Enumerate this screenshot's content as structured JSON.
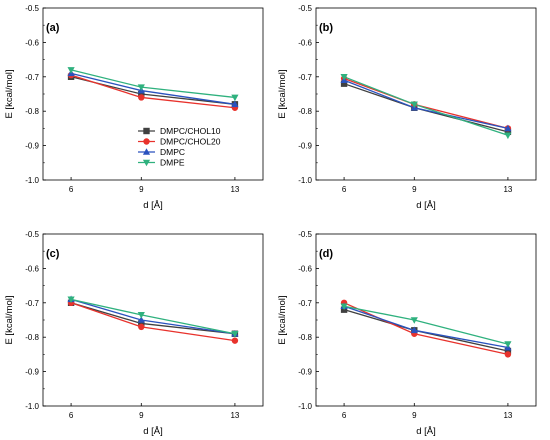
{
  "chart_data": [
    {
      "type": "line",
      "panel_label": "(a)",
      "x": [
        6,
        9,
        13
      ],
      "xlabel": "d [Å]",
      "ylabel": "E [kcal/mol]",
      "xticks": [
        "6",
        "9",
        "13"
      ],
      "yticks": [
        "-1.0",
        "-0.9",
        "-0.8",
        "-0.7",
        "-0.6",
        "-0.5"
      ],
      "ylim": [
        -1.0,
        -0.5
      ],
      "legend": "center-left",
      "series": [
        {
          "name": "DMPC/CHOL10",
          "values": [
            -0.7,
            -0.75,
            -0.78
          ]
        },
        {
          "name": "DMPC/CHOL20",
          "values": [
            -0.695,
            -0.76,
            -0.79
          ]
        },
        {
          "name": "DMPC",
          "values": [
            -0.69,
            -0.74,
            -0.78
          ]
        },
        {
          "name": "DMPE",
          "values": [
            -0.68,
            -0.73,
            -0.76
          ]
        }
      ]
    },
    {
      "type": "line",
      "panel_label": "(b)",
      "x": [
        6,
        9,
        13
      ],
      "xlabel": "d [Å]",
      "ylabel": "E [kcal/mol]",
      "xticks": [
        "6",
        "9",
        "13"
      ],
      "yticks": [
        "-1.0",
        "-0.9",
        "-0.8",
        "-0.7",
        "-0.6",
        "-0.5"
      ],
      "ylim": [
        -1.0,
        -0.5
      ],
      "series": [
        {
          "name": "DMPC/CHOL10",
          "values": [
            -0.72,
            -0.79,
            -0.86
          ]
        },
        {
          "name": "DMPC/CHOL20",
          "values": [
            -0.705,
            -0.78,
            -0.85
          ]
        },
        {
          "name": "DMPC",
          "values": [
            -0.71,
            -0.79,
            -0.85
          ]
        },
        {
          "name": "DMPE",
          "values": [
            -0.7,
            -0.78,
            -0.87
          ]
        }
      ]
    },
    {
      "type": "line",
      "panel_label": "(c)",
      "x": [
        6,
        9,
        13
      ],
      "xlabel": "d [Å]",
      "ylabel": "E [kcal/mol]",
      "xticks": [
        "6",
        "9",
        "13"
      ],
      "yticks": [
        "-1.0",
        "-0.9",
        "-0.8",
        "-0.7",
        "-0.6",
        "-0.5"
      ],
      "ylim": [
        -1.0,
        -0.5
      ],
      "series": [
        {
          "name": "DMPC/CHOL10",
          "values": [
            -0.7,
            -0.76,
            -0.79
          ]
        },
        {
          "name": "DMPC/CHOL20",
          "values": [
            -0.7,
            -0.77,
            -0.81
          ]
        },
        {
          "name": "DMPC",
          "values": [
            -0.69,
            -0.75,
            -0.79
          ]
        },
        {
          "name": "DMPE",
          "values": [
            -0.69,
            -0.735,
            -0.79
          ]
        }
      ]
    },
    {
      "type": "line",
      "panel_label": "(d)",
      "x": [
        6,
        9,
        13
      ],
      "xlabel": "d [Å]",
      "ylabel": "E [kcal/mol]",
      "xticks": [
        "6",
        "9",
        "13"
      ],
      "yticks": [
        "-1.0",
        "-0.9",
        "-0.8",
        "-0.7",
        "-0.6",
        "-0.5"
      ],
      "ylim": [
        -1.0,
        -0.5
      ],
      "series": [
        {
          "name": "DMPC/CHOL10",
          "values": [
            -0.72,
            -0.78,
            -0.84
          ]
        },
        {
          "name": "DMPC/CHOL20",
          "values": [
            -0.7,
            -0.79,
            -0.85
          ]
        },
        {
          "name": "DMPC",
          "values": [
            -0.71,
            -0.78,
            -0.83
          ]
        },
        {
          "name": "DMPE",
          "values": [
            -0.71,
            -0.75,
            -0.82
          ]
        }
      ]
    }
  ],
  "styles": {
    "colors": [
      "#404040",
      "#e8322c",
      "#2a52be",
      "#2fb17e"
    ],
    "markers": [
      "square",
      "circle",
      "triangle-up",
      "triangle-down"
    ]
  }
}
